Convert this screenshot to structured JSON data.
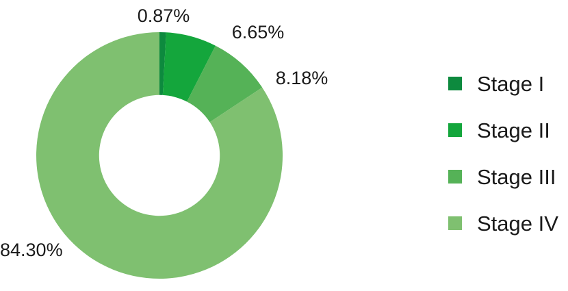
{
  "chart_data": {
    "type": "pie",
    "subtype": "donut",
    "title": "",
    "categories": [
      "Stage I",
      "Stage II",
      "Stage III",
      "Stage IV"
    ],
    "values": [
      0.87,
      6.65,
      8.18,
      84.3
    ],
    "point_labels": [
      "0.87%",
      "6.65%",
      "8.18%",
      "84.30%"
    ],
    "colors": [
      "#0d8a3e",
      "#14a63c",
      "#55b257",
      "#7fc070"
    ],
    "start_angle_deg": 0,
    "direction": "clockwise",
    "donut_hole_ratio": 0.49,
    "legend_position": "right",
    "label_color": "#1a1a1a",
    "background_color": "#ffffff",
    "grid": "off"
  }
}
